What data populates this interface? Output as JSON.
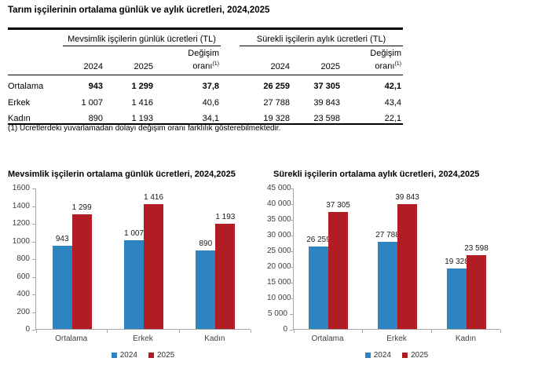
{
  "page": {
    "title": "Tarım işçilerinin ortalama günlük ve aylık ücretleri, 2024,2025"
  },
  "colors": {
    "bar_2024": "#2e83c1",
    "bar_2025": "#b11d22",
    "axis": "#a6a6a6",
    "rule": "#000000"
  },
  "table": {
    "groups": [
      {
        "title": "Mevsimlik işçilerin günlük ücretleri (TL)"
      },
      {
        "title": "Sürekli işçilerin aylık ücretleri (TL)"
      }
    ],
    "columns": {
      "y2024": "2024",
      "y2025": "2025",
      "change_line1": "Değişim",
      "change_line2": "oranı",
      "change_sup": "(1)"
    },
    "rows": [
      {
        "label": "Ortalama",
        "bold": true,
        "values": [
          "943",
          "1 299",
          "37,8",
          "26 259",
          "37 305",
          "42,1"
        ]
      },
      {
        "label": "Erkek",
        "bold": false,
        "values": [
          "1 007",
          "1 416",
          "40,6",
          "27 788",
          "39 843",
          "43,4"
        ]
      },
      {
        "label": "Kadın",
        "bold": false,
        "values": [
          "890",
          "1 193",
          "34,1",
          "19 328",
          "23 598",
          "22,1"
        ]
      }
    ],
    "footnote": "(1) Ücretlerdeki yuvarlamadan dolayı değişim oranı farklılık gösterebilmektedir."
  },
  "chart_data": [
    {
      "type": "bar",
      "title": "Mevsimlik işçilerin ortalama günlük ücretleri, 2024,2025",
      "categories": [
        "Ortalama",
        "Erkek",
        "Kadın"
      ],
      "series": [
        {
          "name": "2024",
          "color": "#2e83c1",
          "values": [
            943,
            1007,
            890
          ],
          "labels": [
            "943",
            "1 007",
            "890"
          ]
        },
        {
          "name": "2025",
          "color": "#b11d22",
          "values": [
            1299,
            1416,
            1193
          ],
          "labels": [
            "1 299",
            "1 416",
            "1 193"
          ]
        }
      ],
      "xlabel": "",
      "ylabel": "",
      "ylim": [
        0,
        1600
      ],
      "yticks": [
        "1600",
        "1400",
        "1200",
        "1000",
        "800",
        "600",
        "400",
        "200",
        "0"
      ],
      "grid": false,
      "legend_position": "bottom"
    },
    {
      "type": "bar",
      "title": "Sürekli işçilerin ortalama aylık ücretleri, 2024,2025",
      "categories": [
        "Ortalama",
        "Erkek",
        "Kadın"
      ],
      "series": [
        {
          "name": "2024",
          "color": "#2e83c1",
          "values": [
            26259,
            27788,
            19328
          ],
          "labels": [
            "26 259",
            "27 788",
            "19 328"
          ]
        },
        {
          "name": "2025",
          "color": "#b11d22",
          "values": [
            37305,
            39843,
            23598
          ],
          "labels": [
            "37 305",
            "39 843",
            "23 598"
          ]
        }
      ],
      "xlabel": "",
      "ylabel": "",
      "ylim": [
        0,
        45000
      ],
      "yticks": [
        "45 000",
        "40 000",
        "35 000",
        "30 000",
        "25 000",
        "20 000",
        "15 000",
        "10 000",
        "5 000",
        "0"
      ],
      "grid": false,
      "legend_position": "bottom"
    }
  ]
}
